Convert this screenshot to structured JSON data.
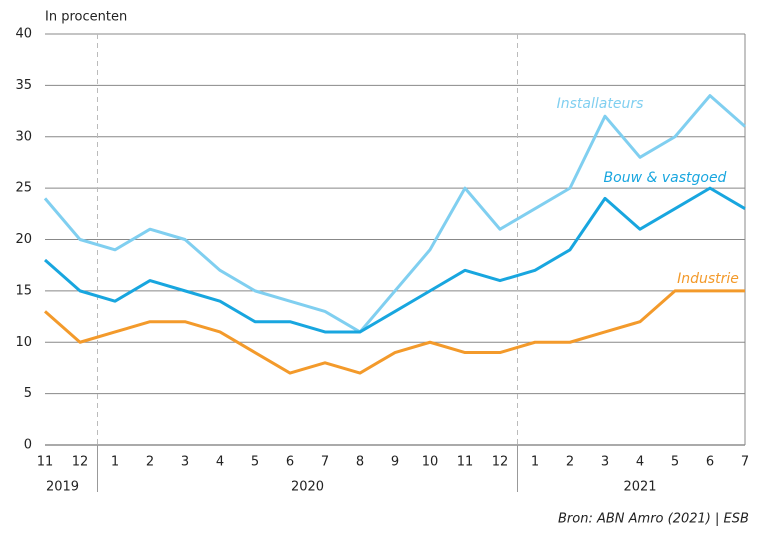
{
  "chart_data": {
    "type": "line",
    "y_label": "In procenten",
    "source": "Bron: ABN Amro (2021) | ESB",
    "categories": [
      "11",
      "12",
      "1",
      "2",
      "3",
      "4",
      "5",
      "6",
      "7",
      "8",
      "9",
      "10",
      "11",
      "12",
      "1",
      "2",
      "3",
      "4",
      "5",
      "6",
      "7"
    ],
    "x_groups": [
      {
        "label": "2019",
        "count": 2
      },
      {
        "label": "2020",
        "count": 12
      },
      {
        "label": "2021",
        "count": 7
      }
    ],
    "series": [
      {
        "name": "Installateurs",
        "color": "#80cff0",
        "values": [
          24,
          20,
          19,
          21,
          20,
          17,
          15,
          14,
          13,
          11,
          15,
          19,
          25,
          21,
          23,
          25,
          32,
          28,
          30,
          34,
          31
        ]
      },
      {
        "name": "Bouw & vastgoed",
        "color": "#18a6df",
        "values": [
          18,
          15,
          14,
          16,
          15,
          14,
          12,
          12,
          11,
          11,
          13,
          15,
          17,
          16,
          17,
          19,
          24,
          21,
          23,
          25,
          23
        ]
      },
      {
        "name": "Industrie",
        "color": "#f39a2b",
        "values": [
          13,
          10,
          11,
          12,
          12,
          11,
          9,
          7,
          8,
          7,
          9,
          10,
          9,
          9,
          10,
          10,
          11,
          12,
          15,
          15,
          15
        ]
      }
    ],
    "ylim": [
      0,
      40
    ],
    "yticks": [
      0,
      5,
      10,
      15,
      20,
      25,
      30,
      35,
      40
    ],
    "grid": true
  }
}
